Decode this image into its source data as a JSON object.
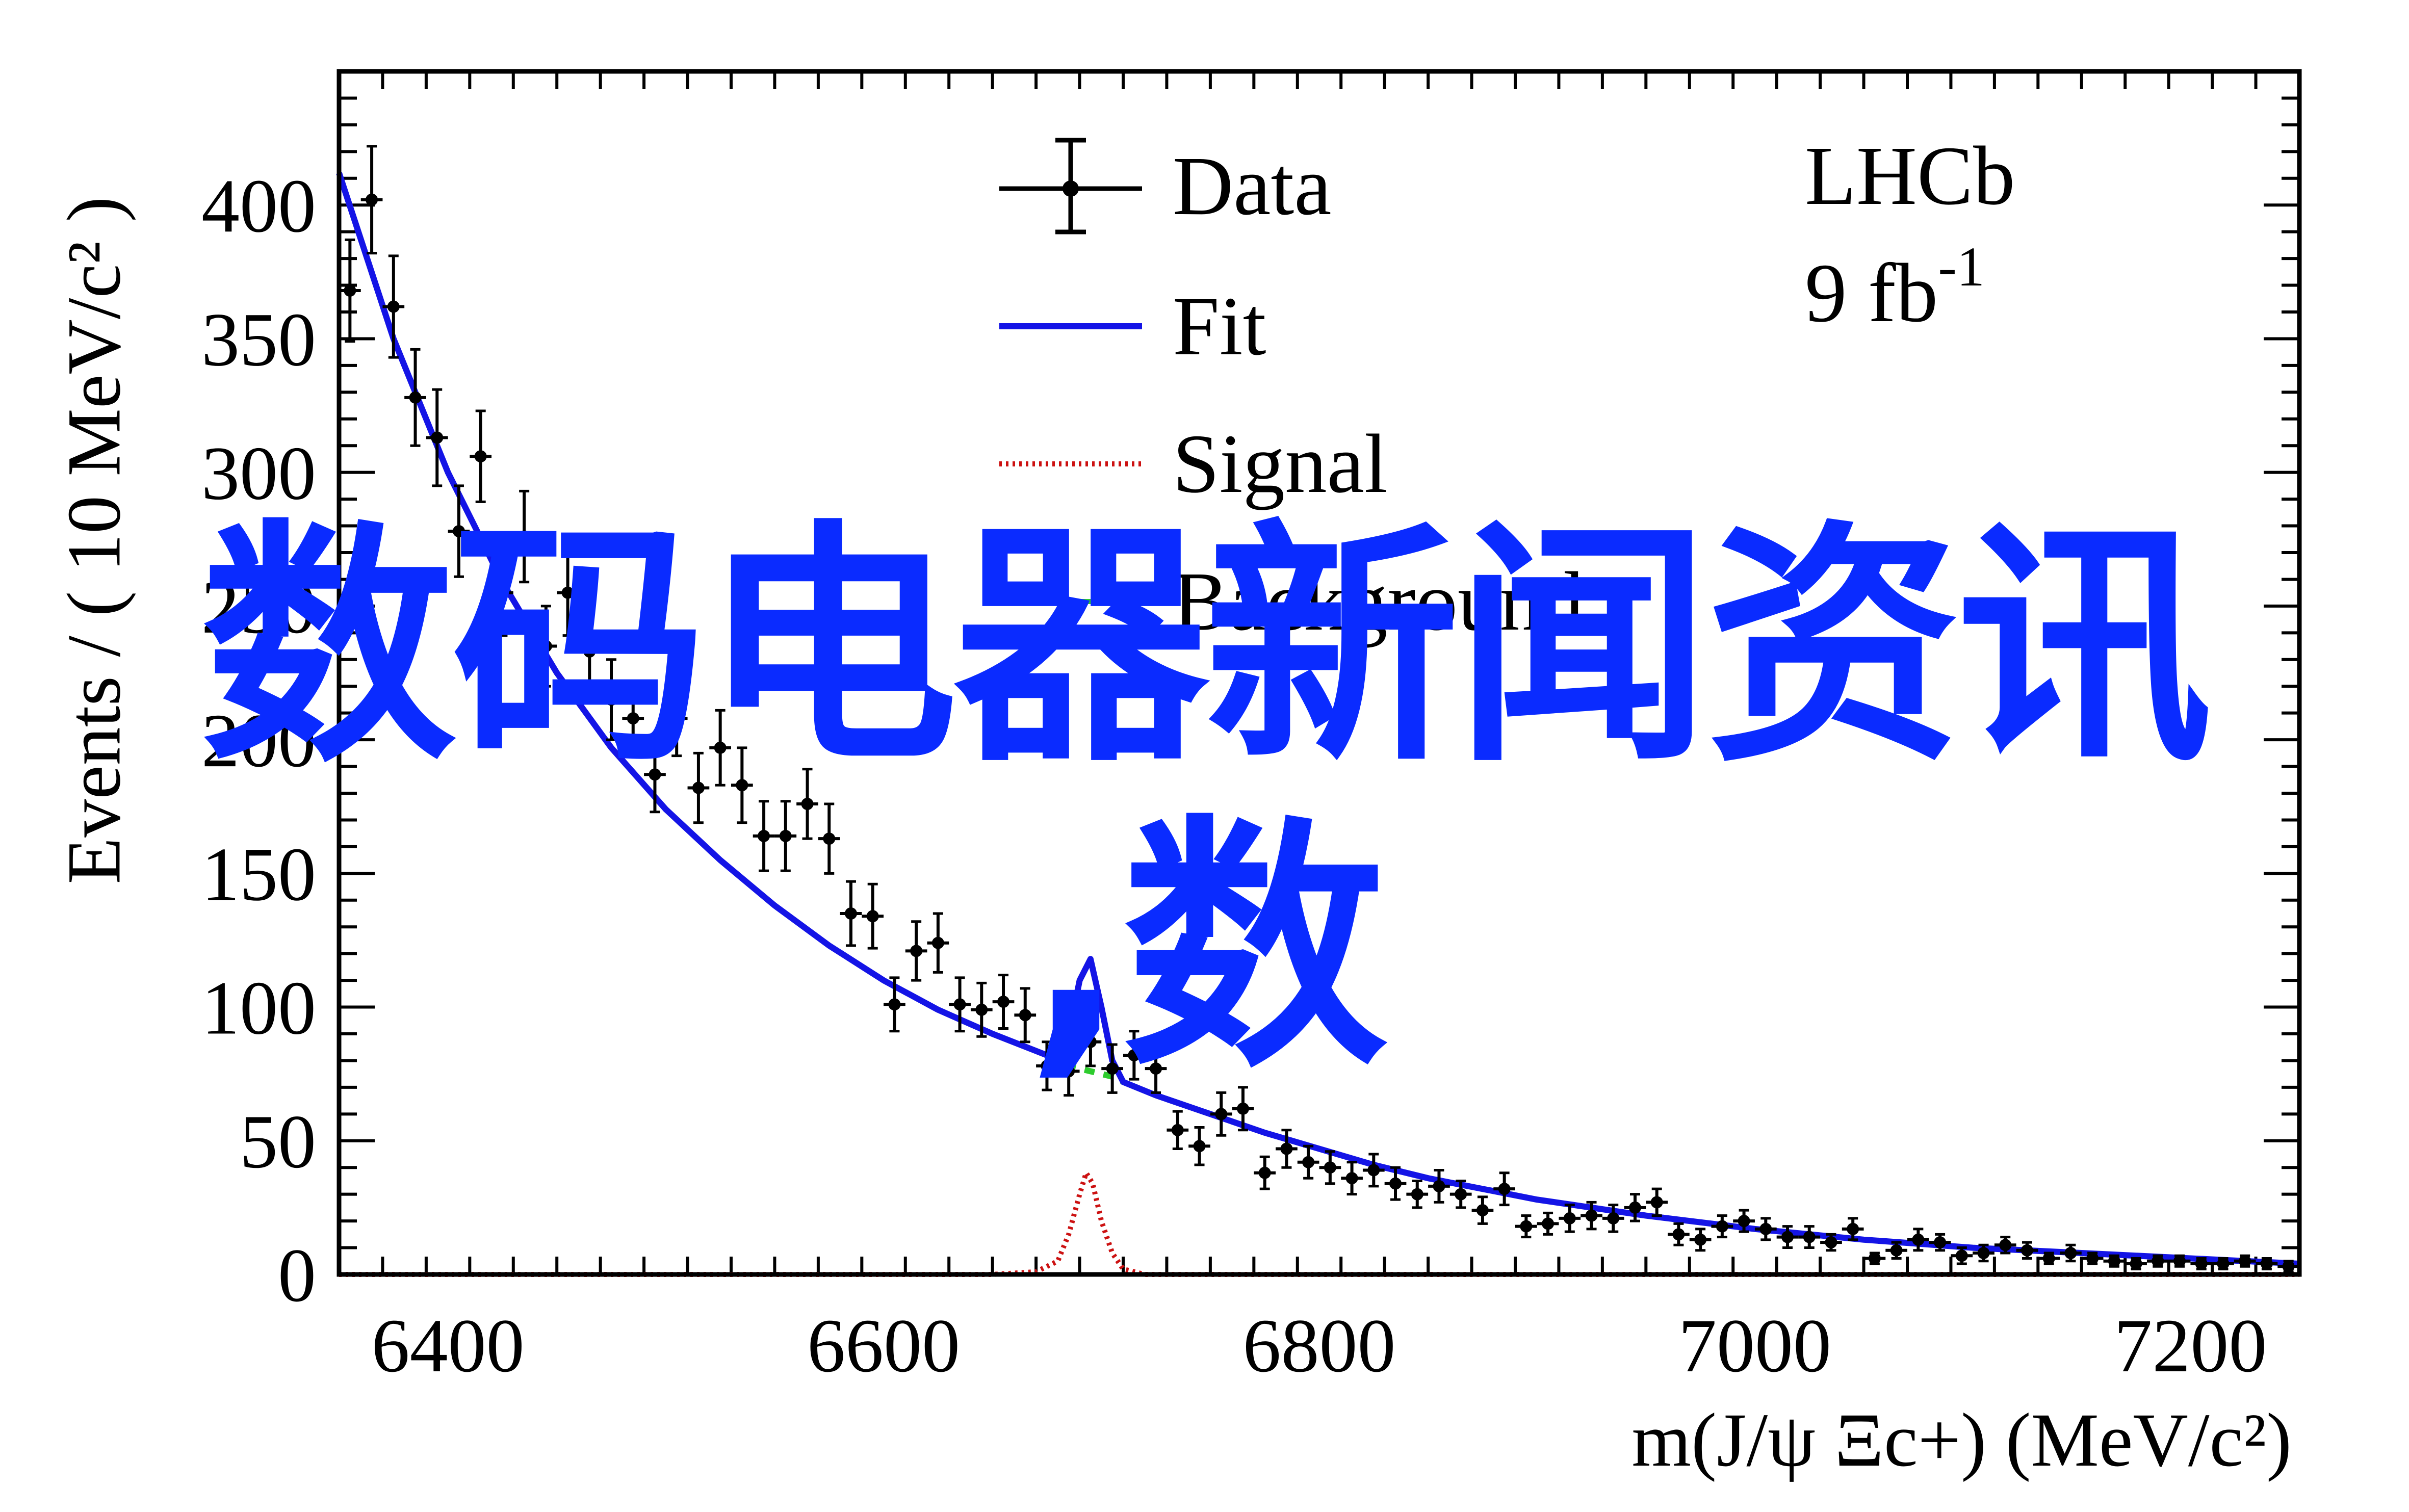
{
  "colors": {
    "data": "#000000",
    "fit": "#1414e6",
    "signal": "#cc1111",
    "background": "#2ecc2e",
    "overlay_text": "#0a2bff"
  },
  "overlay": {
    "line1": "数码电器新闻资讯",
    "line2": ",数"
  },
  "chart_data": {
    "type": "scatter",
    "title": "",
    "xlabel": "m(J/ψ Ξc+) (MeV/c²)",
    "ylabel": "Events / ( 10 MeV/c² )",
    "xlim": [
      6350,
      7250
    ],
    "ylim": [
      0,
      450
    ],
    "xticks": [
      6400,
      6600,
      6800,
      7000,
      7200
    ],
    "yticks": [
      0,
      50,
      100,
      150,
      200,
      250,
      300,
      350,
      400
    ],
    "legend": [
      "Data",
      "Fit",
      "Signal",
      "Background"
    ],
    "legend_position": "top-center",
    "annotation": {
      "line1": "LHCb",
      "line2_prefix": "9 fb",
      "line2_sup": "-1"
    },
    "series": [
      {
        "name": "Data",
        "style": "points-with-errors",
        "x": [
          6355,
          6365,
          6375,
          6385,
          6395,
          6405,
          6415,
          6425,
          6435,
          6445,
          6455,
          6465,
          6475,
          6485,
          6495,
          6505,
          6515,
          6525,
          6535,
          6545,
          6555,
          6565,
          6575,
          6585,
          6595,
          6605,
          6615,
          6625,
          6635,
          6645,
          6655,
          6665,
          6675,
          6685,
          6695,
          6705,
          6715,
          6725,
          6735,
          6745,
          6755,
          6765,
          6775,
          6785,
          6795,
          6805,
          6815,
          6825,
          6835,
          6845,
          6855,
          6865,
          6875,
          6885,
          6895,
          6905,
          6915,
          6925,
          6935,
          6945,
          6955,
          6965,
          6975,
          6985,
          6995,
          7005,
          7015,
          7025,
          7035,
          7045,
          7055,
          7065,
          7075,
          7085,
          7095,
          7105,
          7115,
          7125,
          7135,
          7145,
          7155,
          7165,
          7175,
          7185,
          7195,
          7205,
          7215,
          7225,
          7235,
          7245
        ],
        "y": [
          368,
          402,
          362,
          328,
          313,
          278,
          306,
          255,
          276,
          235,
          255,
          233,
          215,
          208,
          187,
          208,
          182,
          197,
          183,
          164,
          164,
          176,
          163,
          135,
          134,
          101,
          121,
          124,
          101,
          99,
          102,
          97,
          78,
          76,
          87,
          77,
          82,
          77,
          54,
          48,
          60,
          62,
          38,
          47,
          42,
          40,
          36,
          39,
          34,
          30,
          33,
          30,
          24,
          32,
          18,
          19,
          21,
          22,
          21,
          25,
          27,
          15,
          13,
          18,
          20,
          17,
          14,
          14,
          12,
          17,
          6,
          9,
          13,
          12,
          7,
          8,
          11,
          9,
          6,
          8,
          6,
          5,
          4,
          5,
          5,
          4,
          4,
          5,
          4,
          3
        ],
        "errors": [
          19,
          20,
          19,
          18,
          18,
          17,
          17,
          16,
          17,
          15,
          16,
          15,
          15,
          14,
          14,
          14,
          13,
          14,
          14,
          13,
          13,
          13,
          13,
          12,
          12,
          10,
          11,
          11,
          10,
          10,
          10,
          10,
          9,
          9,
          9,
          9,
          9,
          9,
          7,
          7,
          8,
          8,
          6,
          7,
          6,
          6,
          6,
          6,
          6,
          5,
          6,
          5,
          5,
          6,
          4,
          4,
          5,
          5,
          5,
          5,
          5,
          4,
          4,
          4,
          4,
          4,
          4,
          4,
          3,
          4,
          2,
          3,
          4,
          3,
          3,
          3,
          3,
          3,
          2,
          3,
          2,
          2,
          2,
          2,
          2,
          2,
          2,
          2,
          2,
          2
        ]
      },
      {
        "name": "Fit",
        "style": "solid",
        "x": [
          6350,
          6375,
          6400,
          6425,
          6450,
          6475,
          6500,
          6525,
          6550,
          6575,
          6600,
          6625,
          6650,
          6675,
          6685,
          6690,
          6695,
          6700,
          6705,
          6710,
          6725,
          6750,
          6775,
          6800,
          6825,
          6850,
          6875,
          6900,
          6950,
          7000,
          7050,
          7100,
          7150,
          7200,
          7250
        ],
        "y": [
          412,
          350,
          300,
          259,
          225,
          197,
          174,
          155,
          138,
          123,
          110,
          99,
          90,
          82,
          90,
          110,
          118,
          100,
          80,
          72,
          67,
          60,
          53,
          47,
          41,
          36,
          32,
          28,
          22,
          17,
          13,
          10,
          8,
          6,
          4
        ]
      },
      {
        "name": "Signal",
        "style": "dotted",
        "x": [
          6350,
          6650,
          6670,
          6680,
          6685,
          6690,
          6693,
          6696,
          6700,
          6705,
          6710,
          6720,
          6750,
          7250
        ],
        "y": [
          0,
          0,
          1,
          5,
          15,
          30,
          38,
          34,
          20,
          8,
          2,
          0,
          0,
          0
        ]
      },
      {
        "name": "Background",
        "style": "dashed",
        "x": [
          6675,
          6685,
          6695,
          6705,
          6710
        ],
        "y": [
          80,
          78,
          76,
          74,
          72
        ]
      }
    ]
  }
}
